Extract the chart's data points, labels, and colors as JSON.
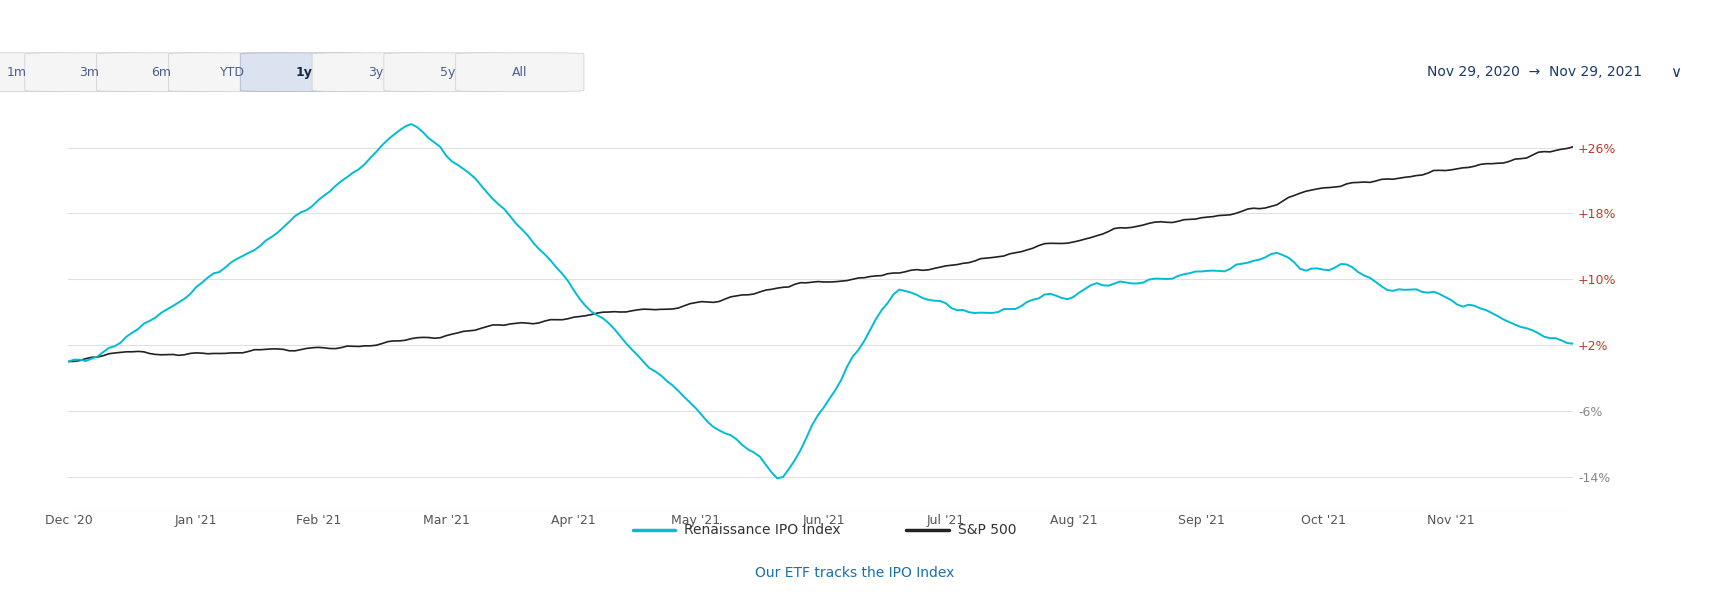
{
  "title_date_range": "Nov 29, 2020  →  Nov 29, 2021",
  "time_buttons": [
    "1m",
    "3m",
    "6m",
    "YTD",
    "1y",
    "3y",
    "5y",
    "All"
  ],
  "active_button": "1y",
  "x_labels": [
    "Dec '20",
    "Jan '21",
    "Feb '21",
    "Mar '21",
    "Apr '21",
    "May '21",
    "Jun '21",
    "Jul '21",
    "Aug '21",
    "Sep '21",
    "Oct '21",
    "Nov '21"
  ],
  "y_ticks": [
    -14,
    -6,
    2,
    10,
    18,
    26
  ],
  "y_tick_labels": [
    "-14%",
    "-6%",
    "+2%",
    "+10%",
    "+18%",
    "+26%"
  ],
  "spx_color": "#222222",
  "ipo_color": "#00bcd4",
  "background_color": "#ffffff",
  "grid_color": "#e0e0e0",
  "legend_ipo": "Renaissance IPO Index",
  "legend_spx": "S&P 500",
  "footer_text": "Our ETF tracks the IPO Index",
  "footer_color": "#1a6faf",
  "header_bg": "#1a2744",
  "date_range_color": "#1a3a6b",
  "button_color": "#4a6090",
  "active_button_bg": "#dce3f0",
  "y_min": -18,
  "y_max": 32,
  "figwidth": 17.1,
  "figheight": 6.14
}
